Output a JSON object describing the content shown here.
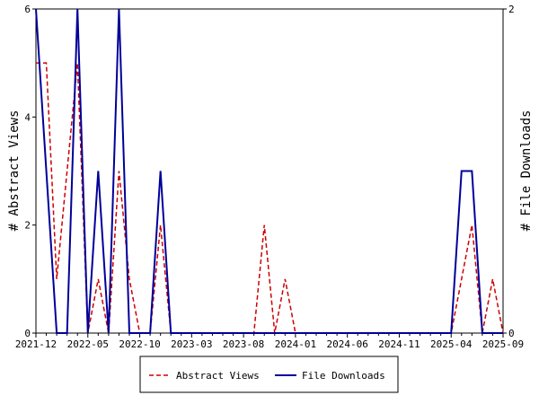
{
  "chart_data": {
    "type": "line",
    "x": [
      "2021-12",
      null,
      null,
      null,
      null,
      "2022-05",
      null,
      null,
      null,
      null,
      "2022-10",
      null,
      null,
      null,
      null,
      "2023-03",
      null,
      null,
      null,
      null,
      "2023-08",
      null,
      null,
      null,
      null,
      "2024-01",
      null,
      null,
      null,
      null,
      "2024-06",
      null,
      null,
      null,
      null,
      "2024-11",
      null,
      null,
      null,
      null,
      "2025-04",
      null,
      null,
      null,
      null,
      "2025-09"
    ],
    "ylabel": "# Abstract Views",
    "y2label": "# File Downloads",
    "ylim": [
      0,
      6
    ],
    "yticks": [
      0,
      2,
      4,
      6
    ],
    "y2lim": [
      0,
      2
    ],
    "y2ticks": [
      0,
      2
    ],
    "legend": "bottom",
    "series": [
      {
        "name": "Abstract Views",
        "color": "#cc0000",
        "dashed": true,
        "values": [
          5,
          5,
          1,
          3,
          5,
          0,
          1,
          0,
          3,
          1,
          0,
          0,
          2,
          0,
          0,
          0,
          0,
          0,
          0,
          0,
          0,
          0,
          2,
          0,
          1,
          0,
          0,
          0,
          0,
          0,
          0,
          0,
          0,
          0,
          0,
          0,
          0,
          0,
          0,
          0,
          0,
          1,
          2,
          0,
          1,
          0
        ]
      },
      {
        "name": "File Downloads",
        "color": "#000099",
        "axis": "y2",
        "values": [
          2,
          1,
          0,
          0,
          2,
          0,
          1,
          0,
          2,
          0,
          0,
          0,
          1,
          0,
          0,
          0,
          0,
          0,
          0,
          0,
          0,
          0,
          0,
          0,
          0,
          0,
          0,
          0,
          0,
          0,
          0,
          0,
          0,
          0,
          0,
          0,
          0,
          0,
          0,
          0,
          0,
          1,
          1,
          0,
          0,
          0
        ]
      }
    ]
  }
}
